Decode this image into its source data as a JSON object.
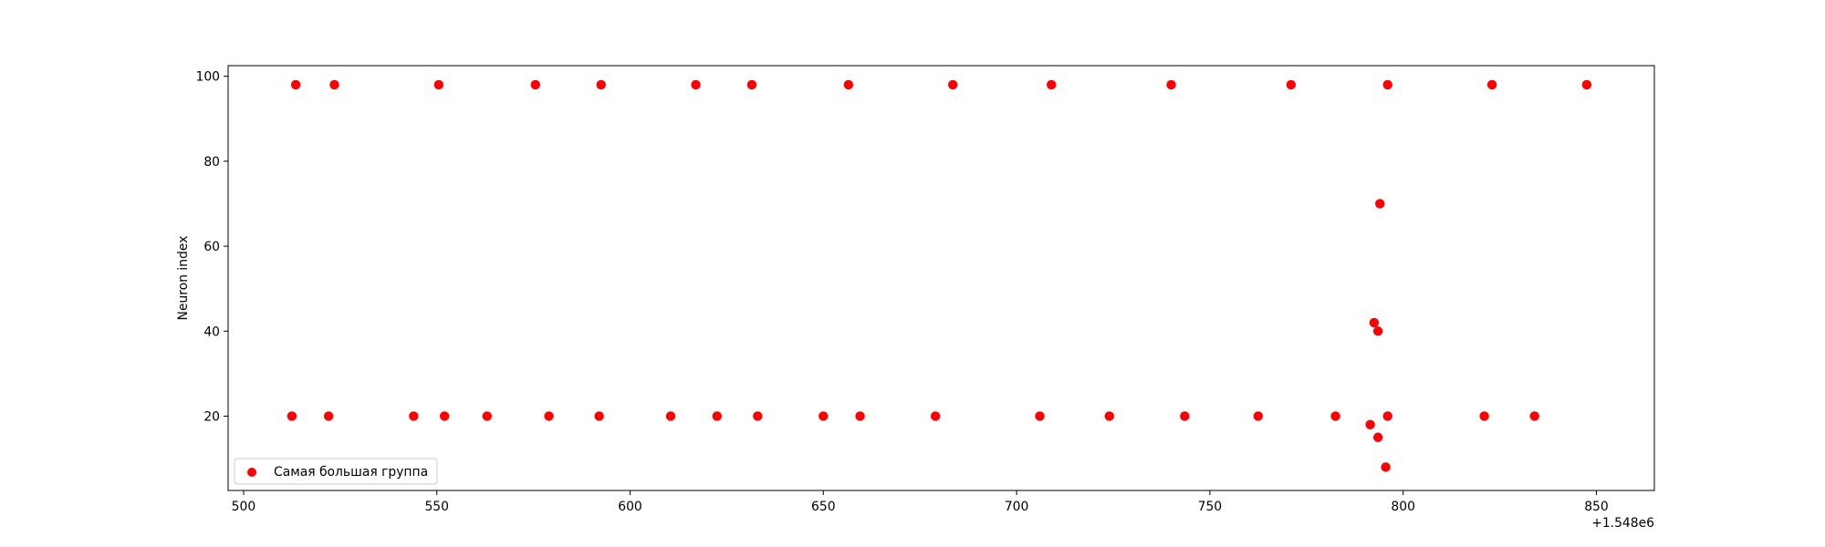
{
  "chart_data": {
    "type": "scatter",
    "title": "",
    "xlabel": "",
    "ylabel": "Neuron index",
    "x_offset_label": "+1.548e6",
    "xlim": [
      496,
      865
    ],
    "ylim": [
      2.5,
      102.5
    ],
    "xticks": [
      500,
      550,
      600,
      650,
      700,
      750,
      800,
      850
    ],
    "yticks": [
      20,
      40,
      60,
      80,
      100
    ],
    "grid": false,
    "legend_position": "lower-left",
    "series": [
      {
        "name": "Самая большая группа",
        "color": "#ff0000",
        "points": [
          {
            "x": 513.5,
            "y": 98
          },
          {
            "x": 523.5,
            "y": 98
          },
          {
            "x": 550.5,
            "y": 98
          },
          {
            "x": 575.5,
            "y": 98
          },
          {
            "x": 592.5,
            "y": 98
          },
          {
            "x": 617,
            "y": 98
          },
          {
            "x": 631.5,
            "y": 98
          },
          {
            "x": 656.5,
            "y": 98
          },
          {
            "x": 683.5,
            "y": 98
          },
          {
            "x": 709,
            "y": 98
          },
          {
            "x": 740,
            "y": 98
          },
          {
            "x": 771,
            "y": 98
          },
          {
            "x": 796,
            "y": 98
          },
          {
            "x": 823,
            "y": 98
          },
          {
            "x": 847.5,
            "y": 98
          },
          {
            "x": 512.5,
            "y": 20
          },
          {
            "x": 522,
            "y": 20
          },
          {
            "x": 544,
            "y": 20
          },
          {
            "x": 552,
            "y": 20
          },
          {
            "x": 563,
            "y": 20
          },
          {
            "x": 579,
            "y": 20
          },
          {
            "x": 592,
            "y": 20
          },
          {
            "x": 610.5,
            "y": 20
          },
          {
            "x": 622.5,
            "y": 20
          },
          {
            "x": 633,
            "y": 20
          },
          {
            "x": 650,
            "y": 20
          },
          {
            "x": 659.5,
            "y": 20
          },
          {
            "x": 679,
            "y": 20
          },
          {
            "x": 706,
            "y": 20
          },
          {
            "x": 724,
            "y": 20
          },
          {
            "x": 743.5,
            "y": 20
          },
          {
            "x": 762.5,
            "y": 20
          },
          {
            "x": 782.5,
            "y": 20
          },
          {
            "x": 796,
            "y": 20
          },
          {
            "x": 821,
            "y": 20
          },
          {
            "x": 834,
            "y": 20
          },
          {
            "x": 791.5,
            "y": 18
          },
          {
            "x": 793.5,
            "y": 15
          },
          {
            "x": 795.5,
            "y": 8
          },
          {
            "x": 792.5,
            "y": 42
          },
          {
            "x": 793.5,
            "y": 40
          },
          {
            "x": 794,
            "y": 70
          }
        ]
      }
    ]
  }
}
